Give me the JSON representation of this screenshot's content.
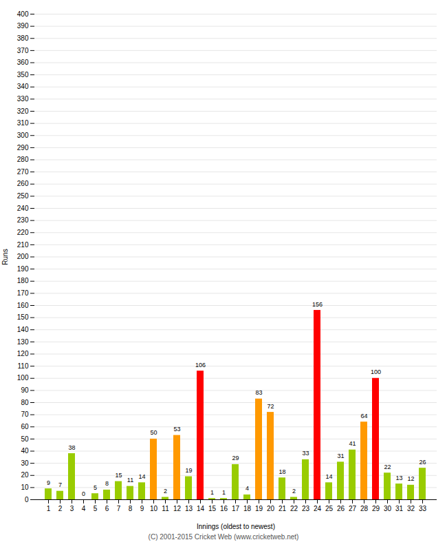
{
  "chart_data": {
    "type": "bar",
    "xlabel": "Innings (oldest to newest)",
    "ylabel": "Runs",
    "categories": [
      "1",
      "2",
      "3",
      "4",
      "5",
      "6",
      "7",
      "8",
      "9",
      "10",
      "11",
      "12",
      "13",
      "14",
      "15",
      "16",
      "17",
      "18",
      "19",
      "20",
      "21",
      "22",
      "23",
      "24",
      "25",
      "26",
      "27",
      "28",
      "29",
      "30",
      "31",
      "32",
      "33"
    ],
    "values": [
      9,
      7,
      38,
      0,
      5,
      8,
      15,
      11,
      14,
      50,
      2,
      53,
      19,
      106,
      1,
      1,
      29,
      4,
      83,
      72,
      18,
      2,
      33,
      156,
      14,
      31,
      41,
      64,
      100,
      22,
      13,
      12,
      26
    ],
    "colors": [
      "#99cc00",
      "#99cc00",
      "#99cc00",
      "#99cc00",
      "#99cc00",
      "#99cc00",
      "#99cc00",
      "#99cc00",
      "#99cc00",
      "#ff9900",
      "#99cc00",
      "#ff9900",
      "#99cc00",
      "#ff0000",
      "#99cc00",
      "#99cc00",
      "#99cc00",
      "#99cc00",
      "#ff9900",
      "#ff9900",
      "#99cc00",
      "#99cc00",
      "#99cc00",
      "#ff0000",
      "#99cc00",
      "#99cc00",
      "#99cc00",
      "#ff9900",
      "#ff0000",
      "#99cc00",
      "#99cc00",
      "#99cc00",
      "#99cc00"
    ],
    "ylim": [
      0,
      400
    ],
    "yticks": [
      0,
      10,
      20,
      30,
      40,
      50,
      60,
      70,
      80,
      90,
      100,
      110,
      120,
      130,
      140,
      150,
      160,
      170,
      180,
      190,
      200,
      210,
      220,
      230,
      240,
      250,
      260,
      270,
      280,
      290,
      300,
      310,
      320,
      330,
      340,
      350,
      360,
      370,
      380,
      390,
      400
    ],
    "grid": true,
    "data_labels": true,
    "annotations": [
      "(C) 2001-2015 Cricket Web (www.cricketweb.net)"
    ]
  }
}
